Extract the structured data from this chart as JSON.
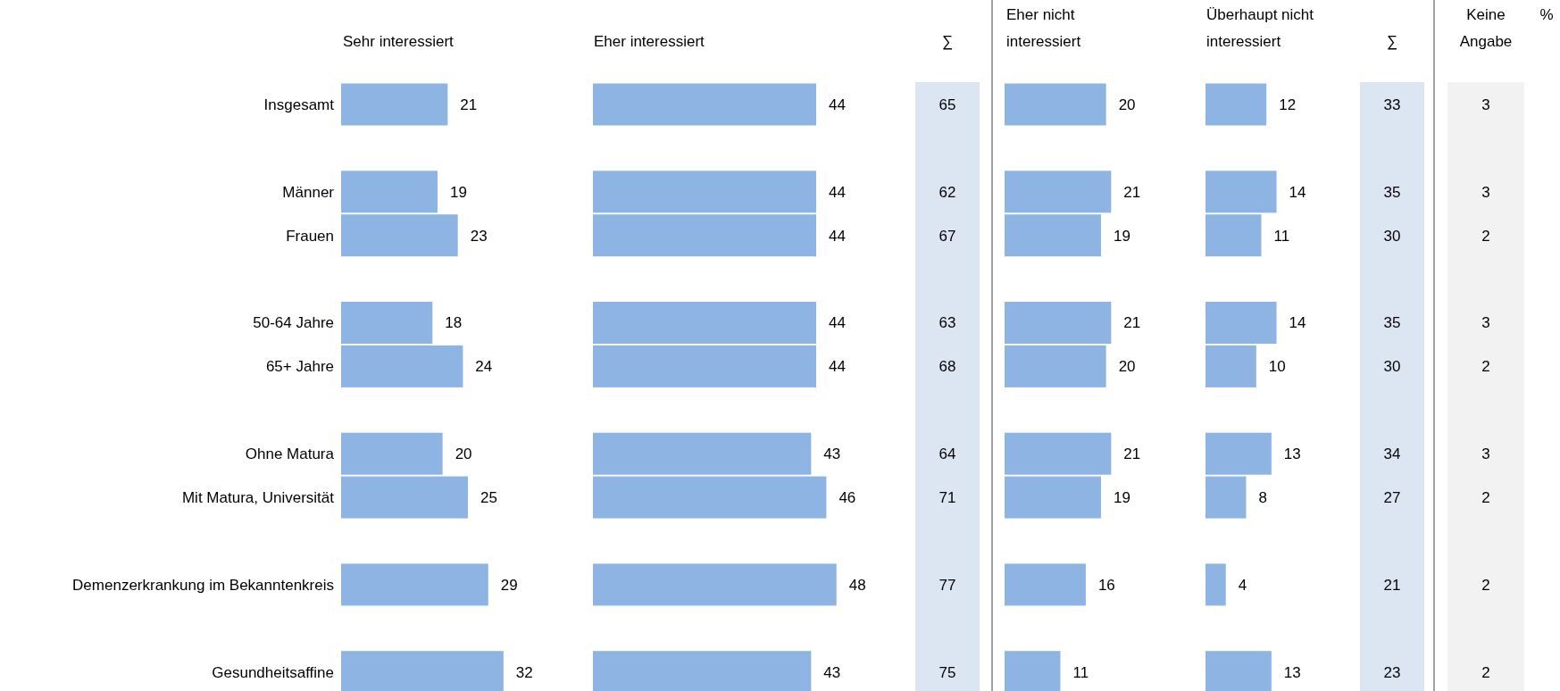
{
  "chart_data": [
    {
      "type": "bar",
      "orientation": "horizontal",
      "title": "Sehr interessiert",
      "categories": [
        "Insgesamt",
        null,
        "Männer",
        "Frauen",
        null,
        "50-64 Jahre",
        "65+ Jahre",
        null,
        "Ohne Matura",
        "Mit Matura, Universität",
        null,
        "Demenzerkrankung im Bekanntenkreis",
        null,
        "Gesundheitsaffine"
      ],
      "values": [
        21,
        null,
        19,
        23,
        null,
        18,
        24,
        null,
        20,
        25,
        null,
        29,
        null,
        32
      ],
      "color": "#8eb4e3",
      "data_labels": true,
      "tick_labels": "y"
    },
    {
      "type": "bar",
      "orientation": "horizontal",
      "title": "Eher interessiert",
      "categories": [
        null,
        null,
        null,
        null,
        null,
        null,
        null,
        null,
        null,
        null,
        null,
        null,
        null,
        null
      ],
      "values": [
        44,
        null,
        44,
        44,
        null,
        44,
        44,
        null,
        43,
        46,
        null,
        48,
        null,
        43
      ],
      "color": "#8eb4e3",
      "data_labels": true,
      "tick_labels": false
    },
    {
      "type": "other",
      "title": "∑",
      "values": [
        65,
        null,
        62,
        67,
        null,
        63,
        68,
        null,
        64,
        71,
        null,
        77,
        null,
        75
      ],
      "color": "#dce6f2",
      "data_labels": true
    },
    {
      "type": "bar",
      "orientation": "horizontal",
      "title": "Eher nicht interessiert",
      "categories": [
        null,
        null,
        null,
        null,
        null,
        null,
        null,
        null,
        null,
        null,
        null,
        null,
        null,
        null
      ],
      "values": [
        20,
        null,
        21,
        19,
        null,
        21,
        20,
        null,
        21,
        19,
        null,
        16,
        null,
        11
      ],
      "color": "#8eb4e3",
      "data_labels": true,
      "tick_labels": false
    },
    {
      "type": "bar",
      "orientation": "horizontal",
      "title": "Überhaupt nicht interessiert",
      "categories": [
        null,
        null,
        null,
        null,
        null,
        null,
        null,
        null,
        null,
        null,
        null,
        null,
        null,
        null
      ],
      "values": [
        12,
        null,
        14,
        11,
        null,
        14,
        10,
        null,
        13,
        8,
        null,
        4,
        null,
        13
      ],
      "color": "#8eb4e3",
      "data_labels": true,
      "tick_labels": false
    },
    {
      "type": "other",
      "title": "∑",
      "values": [
        33,
        null,
        35,
        30,
        null,
        35,
        30,
        null,
        34,
        27,
        null,
        21,
        null,
        23
      ],
      "color": "#dce6f2",
      "data_labels": true
    },
    {
      "type": "other",
      "title": "Keine Angabe",
      "values": [
        3,
        null,
        3,
        2,
        null,
        3,
        2,
        null,
        3,
        2,
        null,
        2,
        null,
        2
      ],
      "color": "#f2f2f2",
      "data_labels": true,
      "annotations": [
        "%"
      ]
    }
  ]
}
